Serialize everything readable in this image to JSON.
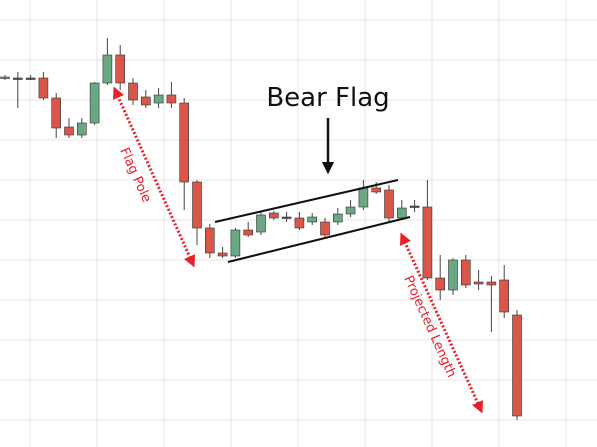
{
  "chart_data": {
    "type": "candlestick",
    "annotations": {
      "pattern": "Bear Flag",
      "pole": "Flag Pole",
      "projection": "Projected Length"
    },
    "categories": [
      null,
      null,
      null,
      null,
      null,
      null,
      null,
      null,
      null,
      null,
      null,
      null,
      null,
      null,
      null,
      null,
      null,
      null,
      null,
      null,
      null,
      null,
      null,
      null,
      null,
      null,
      null,
      null,
      null,
      null,
      null,
      null,
      null,
      null,
      null,
      null,
      null,
      null,
      null,
      null,
      null
    ],
    "open": [
      369,
      369,
      369,
      369,
      349,
      320,
      312,
      324,
      364,
      392,
      364,
      350,
      344,
      352,
      344,
      265,
      219,
      194,
      191,
      217,
      215,
      234,
      230,
      229,
      225,
      225,
      225,
      233,
      240,
      259,
      257,
      229,
      241,
      240,
      169,
      157,
      187,
      165,
      165,
      167,
      132
    ],
    "close": [
      370,
      369,
      369,
      349,
      319,
      312,
      324,
      364,
      392,
      364,
      347,
      342,
      352,
      344,
      265,
      219,
      194,
      191,
      217,
      212,
      232,
      229,
      230,
      219,
      230,
      212,
      233,
      240,
      259,
      255,
      229,
      239,
      241,
      169,
      157,
      187,
      162,
      163,
      162,
      135,
      31
    ],
    "high": [
      372,
      375,
      372,
      375,
      354,
      329,
      329,
      365,
      409,
      402,
      369,
      357,
      359,
      365,
      349,
      267,
      223,
      200,
      219,
      225,
      235,
      236,
      235,
      235,
      234,
      229,
      239,
      247,
      267,
      265,
      262,
      247,
      247,
      267,
      192,
      189,
      192,
      177,
      171,
      182,
      137
    ],
    "low": [
      367,
      339,
      367,
      347,
      309,
      309,
      309,
      322,
      362,
      357,
      342,
      339,
      339,
      339,
      237,
      202,
      189,
      189,
      189,
      210,
      212,
      227,
      225,
      217,
      222,
      210,
      222,
      230,
      237,
      253,
      225,
      227,
      235,
      167,
      147,
      152,
      159,
      157,
      115,
      129,
      27
    ],
    "up_color": "#6aa884",
    "down_color": "#d9574a",
    "neutral_color": "#555555",
    "ylim": [
      0,
      447
    ],
    "yticks": [
      27,
      67,
      107,
      147,
      187,
      227,
      267,
      307,
      347,
      387,
      427
    ],
    "grid": true
  }
}
